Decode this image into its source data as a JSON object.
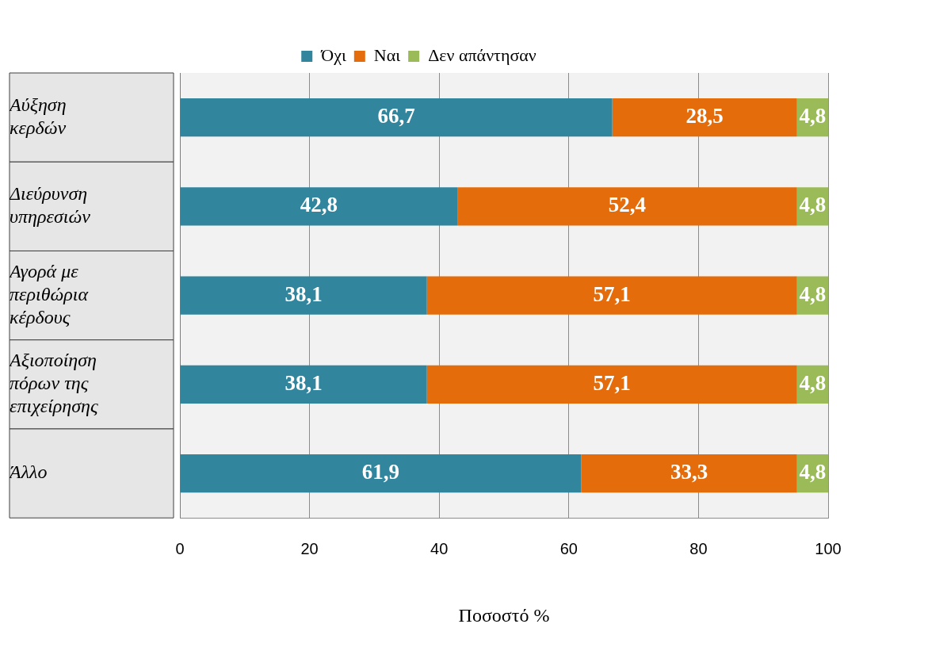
{
  "chart_data": {
    "type": "bar",
    "orientation": "horizontal",
    "stacked": true,
    "xlabel": "Ποσοστό %",
    "categories": [
      "Αύξηση κερδών",
      "Διεύρυνση υπηρεσιών",
      "Αγορά με περιθώρια κέρδους",
      "Αξιοποίηση πόρων της επιχείρησης",
      "Άλλο"
    ],
    "series": [
      {
        "name": "Όχι",
        "color": "#31859c",
        "values": [
          66.7,
          42.8,
          38.1,
          38.1,
          61.9
        ],
        "value_labels": [
          "66,7",
          "42,8",
          "38,1",
          "38,1",
          "61,9"
        ]
      },
      {
        "name": "Ναι",
        "color": "#e46c0a",
        "values": [
          28.5,
          52.4,
          57.1,
          57.1,
          33.3
        ],
        "value_labels": [
          "28,5",
          "52,4",
          "57,1",
          "57,1",
          "33,3"
        ]
      },
      {
        "name": "Δεν απάντησαν",
        "color": "#9bbb59",
        "values": [
          4.8,
          4.8,
          4.8,
          4.8,
          4.8
        ],
        "value_labels": [
          "4,8",
          "4,8",
          "4,8",
          "4,8",
          "4,8"
        ]
      }
    ],
    "xlim": [
      0,
      100
    ],
    "xticks": [
      0,
      20,
      40,
      60,
      80,
      100
    ],
    "grid": "x",
    "legend": "top"
  }
}
